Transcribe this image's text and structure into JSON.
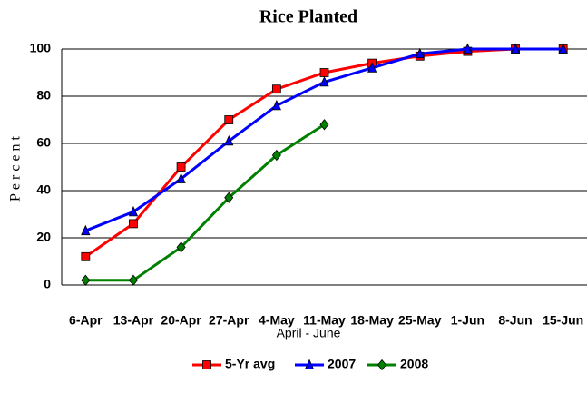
{
  "chart_data": {
    "type": "line",
    "title": "Rice Planted",
    "ylabel": "Percent",
    "xlabel": "April - June",
    "categories": [
      "6-Apr",
      "13-Apr",
      "20-Apr",
      "27-Apr",
      "4-May",
      "11-May",
      "18-May",
      "25-May",
      "1-Jun",
      "8-Jun",
      "15-Jun"
    ],
    "series": [
      {
        "name": "5-Yr avg",
        "color": "#ff0000",
        "marker": "square",
        "values": [
          12,
          26,
          50,
          70,
          83,
          90,
          94,
          97,
          99,
          100,
          100
        ]
      },
      {
        "name": "2007",
        "color": "#0000ff",
        "marker": "triangle",
        "values": [
          23,
          31,
          45,
          61,
          76,
          86,
          92,
          98,
          100,
          100,
          100
        ]
      },
      {
        "name": "2008",
        "color": "#008000",
        "marker": "diamond",
        "values": [
          2,
          2,
          16,
          37,
          55,
          68,
          null,
          null,
          null,
          null,
          null
        ]
      }
    ],
    "ylim": [
      0,
      100
    ],
    "yticks": [
      0,
      20,
      40,
      60,
      80,
      100
    ],
    "grid": true,
    "legend": "bottom"
  }
}
